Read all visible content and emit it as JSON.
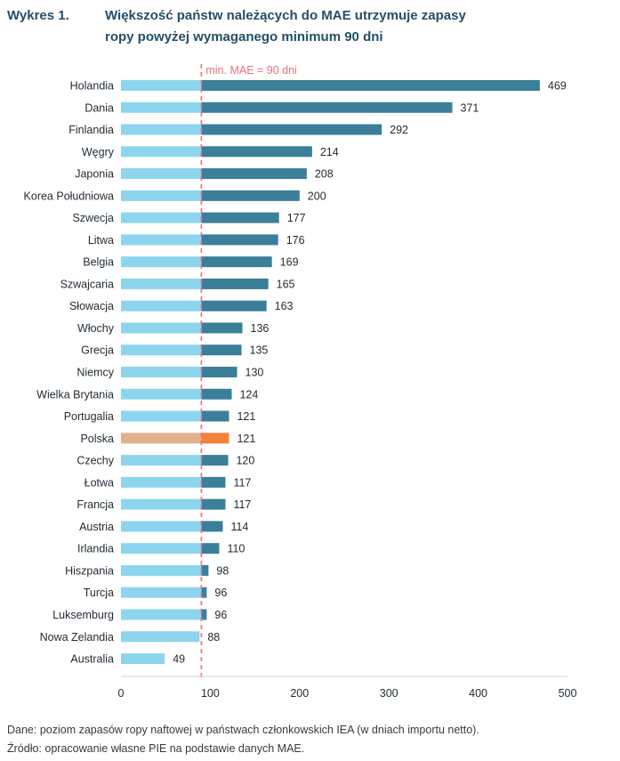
{
  "header": {
    "figure_label": "Wykres 1.",
    "title": "Większość państw należących do MAE utrzymuje zapasy ropy powyżej wymaganego minimum 90 dni"
  },
  "footer": {
    "note": "Dane: poziom zapasów ropy naftowej w państwach członkowskich IEA (w dniach importu netto).",
    "source": "Źródło: opracowanie własne PIE na podstawie danych MAE."
  },
  "colors": {
    "below_threshold": "#8dd5ef",
    "above_threshold": "#3b7f9a",
    "highlight_below": "#e2b08d",
    "highlight_above": "#f2813a",
    "threshold_line": "#e8727a"
  },
  "chart_data": {
    "type": "bar",
    "orientation": "horizontal",
    "categories": [
      "Holandia",
      "Dania",
      "Finlandia",
      "Węgry",
      "Japonia",
      "Korea Południowa",
      "Szwecja",
      "Litwa",
      "Belgia",
      "Szwajcaria",
      "Słowacja",
      "Włochy",
      "Grecja",
      "Niemcy",
      "Wielka Brytania",
      "Portugalia",
      "Polska",
      "Czechy",
      "Łotwa",
      "Francja",
      "Austria",
      "Irlandia",
      "Hiszpania",
      "Turcja",
      "Luksemburg",
      "Nowa Zelandia",
      "Australia"
    ],
    "values": [
      469,
      371,
      292,
      214,
      208,
      200,
      177,
      176,
      169,
      165,
      163,
      136,
      135,
      130,
      124,
      121,
      121,
      120,
      117,
      117,
      114,
      110,
      98,
      96,
      96,
      88,
      49
    ],
    "highlight": "Polska",
    "threshold": {
      "value": 90,
      "label": "min. MAE = 90 dni"
    },
    "xlim": [
      0,
      500
    ],
    "xticks": [
      0,
      100,
      200,
      300,
      400,
      500
    ],
    "grid": false
  }
}
